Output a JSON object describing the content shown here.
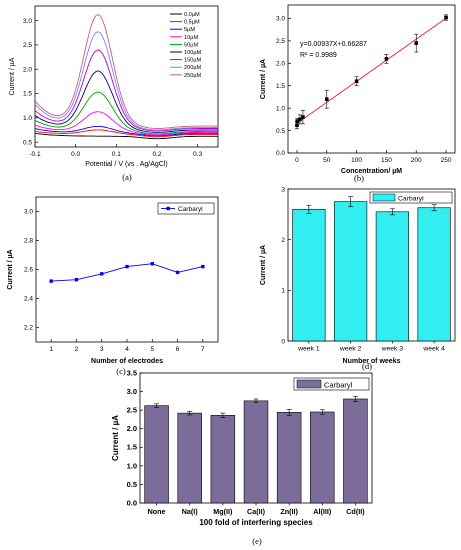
{
  "chart_data": [
    {
      "panel": "(a)",
      "type": "line",
      "xlabel": "Potential / V (vs . Ag/AgCl)",
      "ylabel": "Current / µA",
      "xlim": [
        -0.1,
        0.35
      ],
      "ylim": [
        0.4,
        3.3
      ],
      "xticks": [
        "-0.1",
        "0.0",
        "0.1",
        "0.2",
        "0.3"
      ],
      "yticks": [
        "0.5",
        "1.0",
        "1.5",
        "2.0",
        "2.5",
        "3.0"
      ],
      "legend": "top-right",
      "series": [
        {
          "name": "0.0µM",
          "color": "#000000",
          "peak": 0.62,
          "end": 0.62,
          "start": 0.68
        },
        {
          "name": "0.5µM",
          "color": "#ff0000",
          "peak": 0.75,
          "end": 0.66,
          "start": 0.72
        },
        {
          "name": "5µM",
          "color": "#0000ff",
          "peak": 0.82,
          "end": 0.68,
          "start": 0.78
        },
        {
          "name": "10µM",
          "color": "#ff00ff",
          "peak": 1.12,
          "end": 0.7,
          "start": 0.85
        },
        {
          "name": "50µM",
          "color": "#00a000",
          "peak": 1.52,
          "end": 0.72,
          "start": 0.95
        },
        {
          "name": "100µM",
          "color": "#000080",
          "peak": 1.95,
          "end": 0.75,
          "start": 1.05
        },
        {
          "name": "150µM",
          "color": "#c000c0",
          "peak": 2.38,
          "end": 0.78,
          "start": 1.15
        },
        {
          "name": "200µM",
          "color": "#8080ff",
          "peak": 2.75,
          "end": 0.8,
          "start": 1.28
        },
        {
          "name": "250µM",
          "color": "#c06080",
          "peak": 3.1,
          "end": 0.83,
          "start": 1.35
        }
      ]
    },
    {
      "panel": "(b)",
      "type": "scatter",
      "xlabel": "Concentration/ µM",
      "ylabel": "Current / µA",
      "xlim": [
        -15,
        265
      ],
      "ylim": [
        0,
        3.3
      ],
      "xticks": [
        0,
        50,
        100,
        150,
        200,
        250
      ],
      "yticks": [
        "0.0",
        "0.5",
        "1.0",
        "1.5",
        "2.0",
        "2.5",
        "3.0"
      ],
      "equation": "y=0.00937X+0.66287",
      "r2": "R² = 0.9989",
      "fit": {
        "slope": 0.00937,
        "intercept": 0.66287
      },
      "x": [
        0,
        0.5,
        5,
        10,
        50,
        100,
        150,
        200,
        250
      ],
      "y": [
        0.62,
        0.71,
        0.75,
        0.8,
        1.2,
        1.6,
        2.1,
        2.45,
        3.02
      ],
      "err": [
        0.08,
        0.06,
        0.1,
        0.15,
        0.2,
        0.1,
        0.1,
        0.2,
        0.06
      ]
    },
    {
      "panel": "(c)",
      "type": "line",
      "xlabel": "Number of electrodes",
      "ylabel": "Current / µA",
      "ylim": [
        2.1,
        3.1
      ],
      "xticks": [
        1,
        2,
        3,
        4,
        5,
        6,
        7
      ],
      "yticks": [
        "2.2",
        "2.4",
        "2.6",
        "2.8",
        "3.0"
      ],
      "legend": "top-right",
      "series": [
        {
          "name": "Carbaryl",
          "color": "#0000ff",
          "x": [
            1,
            2,
            3,
            4,
            5,
            6,
            7
          ],
          "y": [
            2.52,
            2.53,
            2.57,
            2.62,
            2.64,
            2.58,
            2.62
          ]
        }
      ]
    },
    {
      "panel": "(d)",
      "type": "bar",
      "xlabel": "Number of weeks",
      "ylabel": "Current / µA",
      "ylim": [
        0,
        3
      ],
      "yticks": [
        "0",
        "1",
        "2",
        "3"
      ],
      "legend": "top-right",
      "color": "#33eef0",
      "categories": [
        "week 1",
        "week 2",
        "week 3",
        "week 4"
      ],
      "series": [
        {
          "name": "Carbaryl",
          "values": [
            2.6,
            2.75,
            2.55,
            2.63
          ],
          "err": [
            0.08,
            0.1,
            0.06,
            0.06
          ]
        }
      ]
    },
    {
      "panel": "(e)",
      "type": "bar",
      "xlabel": "100 fold of interfering species",
      "ylabel": "Current / µA",
      "ylim": [
        0,
        3.5
      ],
      "yticks": [
        "0.0",
        "0.5",
        "1.0",
        "1.5",
        "2.0",
        "2.5",
        "3.0",
        "3.5"
      ],
      "legend": "top-right",
      "color": "#7b6c99",
      "categories": [
        "None",
        "Na(I)",
        "Mg(II)",
        "Ca(II)",
        "Zn(II)",
        "Al(III)",
        "Cd(II)"
      ],
      "series": [
        {
          "name": "Carbaryl",
          "values": [
            2.62,
            2.42,
            2.36,
            2.75,
            2.44,
            2.45,
            2.8
          ],
          "err": [
            0.05,
            0.05,
            0.06,
            0.05,
            0.08,
            0.06,
            0.07
          ]
        }
      ]
    }
  ]
}
